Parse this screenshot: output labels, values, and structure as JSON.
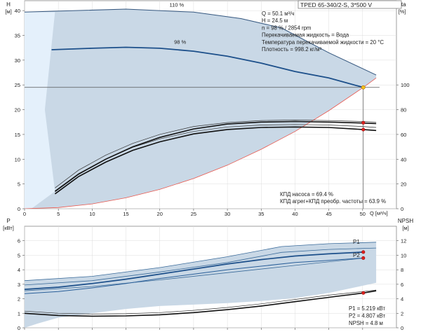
{
  "title_box": "TPED 65-340/2-S, 3*500 V",
  "chart_data": [
    {
      "type": "line",
      "name": "upper",
      "xlabel": "Q [м³/ч]",
      "ylabel": "H",
      "ylabel_unit": "[м]",
      "y2label": "eta",
      "y2label_unit": "[%]",
      "xlim": [
        0,
        55
      ],
      "ylim": [
        0,
        42
      ],
      "y2lim": [
        0,
        168
      ],
      "x_ticks": [
        0,
        5,
        10,
        15,
        20,
        25,
        30,
        35,
        40,
        45,
        50
      ],
      "y_ticks": [
        0,
        5,
        10,
        15,
        20,
        25,
        30,
        35,
        40
      ],
      "y2_ticks": [
        0,
        20,
        40,
        60,
        80,
        100
      ],
      "curve_labels": [
        "110 %",
        "98 %"
      ],
      "series": [
        {
          "role": "head_110",
          "label": "110 %",
          "x": [
            0,
            15,
            25,
            32,
            38,
            45,
            52
          ],
          "y": [
            39.7,
            40.3,
            39.7,
            38.4,
            36.5,
            31.5,
            27
          ]
        },
        {
          "role": "head_98",
          "label": "98 %",
          "x": [
            4,
            10,
            15,
            20,
            25,
            30,
            35,
            40,
            45,
            50.1
          ],
          "y": [
            32.1,
            32.4,
            32.6,
            32.4,
            31.8,
            30.8,
            29.4,
            27.7,
            26.4,
            24.5
          ]
        },
        {
          "role": "system_curve",
          "x": [
            0,
            5,
            10,
            15,
            20,
            25,
            30,
            35,
            40,
            45,
            50.1,
            52
          ],
          "y": [
            0,
            0.24,
            0.98,
            2.2,
            3.9,
            6.1,
            8.8,
            12,
            15.6,
            19.8,
            24.5,
            26.4
          ]
        },
        {
          "role": "eta_unit",
          "x": [
            4.5,
            8,
            12,
            16,
            20,
            25,
            30,
            35,
            40,
            45,
            50,
            52
          ],
          "y": [
            3.5,
            7,
            10,
            12.5,
            14.4,
            16.1,
            17.1,
            17.5,
            17.6,
            17.5,
            17.3,
            17.2
          ]
        },
        {
          "role": "eta_unit_band",
          "x": [
            4.5,
            8,
            12,
            16,
            20,
            25,
            30,
            35,
            40,
            45,
            50,
            52
          ],
          "y": [
            4.2,
            7.8,
            10.8,
            13.2,
            15,
            16.6,
            17.4,
            17.8,
            17.9,
            17.8,
            17.6,
            17.5
          ]
        },
        {
          "role": "eta_pump",
          "x": [
            4.5,
            8,
            12,
            16,
            20,
            25,
            30,
            35,
            40,
            45,
            50,
            52
          ],
          "y": [
            3,
            6.5,
            9.4,
            11.8,
            13.5,
            15.1,
            16,
            16.4,
            16.5,
            16.4,
            16,
            15.8
          ]
        },
        {
          "role": "eta_pump_band",
          "x": [
            4.5,
            8,
            12,
            16,
            20,
            25,
            30,
            35,
            40,
            45,
            50,
            52
          ],
          "y": [
            3.6,
            7.1,
            10,
            12.4,
            14.1,
            15.6,
            16.5,
            16.9,
            17,
            16.9,
            16.6,
            16.4
          ]
        }
      ],
      "operating_points": [
        {
          "x": 50.1,
          "y": 24.5
        },
        {
          "x": 50.1,
          "y": 17.35
        },
        {
          "x": 50.1,
          "y": 15.98
        }
      ],
      "info": [
        "Q = 50.1 м³/ч",
        "H = 24.5 м",
        "n = 98 % / 2854 rpm",
        "Перекачиваемая жидкость = Вода",
        "Температура перекачиваемой жидкости = 20 °C",
        "Плотность = 998.2 кг/м³"
      ],
      "efficiency_notes": [
        "КПД насоса = 69.4 %",
        "КПД агрег+КПД преобр. частоты = 63.9 %"
      ]
    },
    {
      "type": "line",
      "name": "lower",
      "ylabel": "P",
      "ylabel_unit": "[кВт]",
      "y2label": "NPSH",
      "y2label_unit": "[м]",
      "xlim": [
        0,
        55
      ],
      "ylim": [
        0,
        7
      ],
      "y2lim": [
        0,
        14
      ],
      "y_ticks": [
        0,
        1,
        2,
        3,
        4,
        5,
        6
      ],
      "y2_ticks": [
        0,
        2,
        4,
        6,
        8,
        10,
        12
      ],
      "series_names": [
        "P1",
        "P2"
      ],
      "series": [
        {
          "role": "P1",
          "label": "P1",
          "x": [
            0,
            5,
            10,
            15,
            20,
            25,
            30,
            35,
            40,
            45,
            50.1
          ],
          "y": [
            2.65,
            2.8,
            3.05,
            3.35,
            3.7,
            4.05,
            4.4,
            4.7,
            4.95,
            5.1,
            5.22
          ]
        },
        {
          "role": "P2",
          "label": "P2",
          "x": [
            0,
            5,
            10,
            15,
            20,
            25,
            30,
            35,
            40,
            45,
            50.1
          ],
          "y": [
            2.35,
            2.5,
            2.75,
            3.05,
            3.4,
            3.7,
            4.0,
            4.25,
            4.5,
            4.65,
            4.81
          ]
        },
        {
          "role": "P110_top",
          "x": [
            0,
            10,
            20,
            30,
            38,
            45,
            52
          ],
          "y": [
            3.25,
            3.55,
            4.15,
            4.9,
            5.6,
            5.8,
            5.9
          ]
        },
        {
          "role": "P110_low",
          "x": [
            0,
            10,
            20,
            30,
            38,
            45,
            52
          ],
          "y": [
            2.95,
            3.25,
            3.85,
            4.5,
            5.2,
            5.4,
            5.5
          ]
        },
        {
          "role": "P_bottom",
          "x": [
            0,
            10,
            20,
            30,
            40,
            50.1
          ],
          "y": [
            2.55,
            2.85,
            3.3,
            3.8,
            4.3,
            4.8
          ]
        },
        {
          "role": "NPSH",
          "x": [
            0,
            5,
            10,
            15,
            20,
            25,
            30,
            35,
            40,
            45,
            50.1,
            52
          ],
          "y": [
            1.0,
            0.85,
            0.8,
            0.82,
            0.9,
            1.05,
            1.25,
            1.5,
            1.8,
            2.1,
            2.4,
            2.55
          ]
        },
        {
          "role": "NPSH_band",
          "x": [
            0,
            5,
            10,
            15,
            20,
            25,
            30,
            35,
            40,
            45,
            50.1,
            52
          ],
          "y": [
            1.15,
            1.0,
            0.95,
            0.97,
            1.05,
            1.2,
            1.4,
            1.65,
            1.95,
            2.25,
            2.5,
            2.6
          ]
        }
      ],
      "operating_points": [
        {
          "x": 50.1,
          "y": 5.219
        },
        {
          "x": 50.1,
          "y": 4.807
        },
        {
          "x": 50.1,
          "y": 2.4
        }
      ],
      "info": [
        "P1 = 5.219 кВт",
        "P2 = 4.807 кВт",
        "NPSH = 4.8 м"
      ]
    }
  ]
}
